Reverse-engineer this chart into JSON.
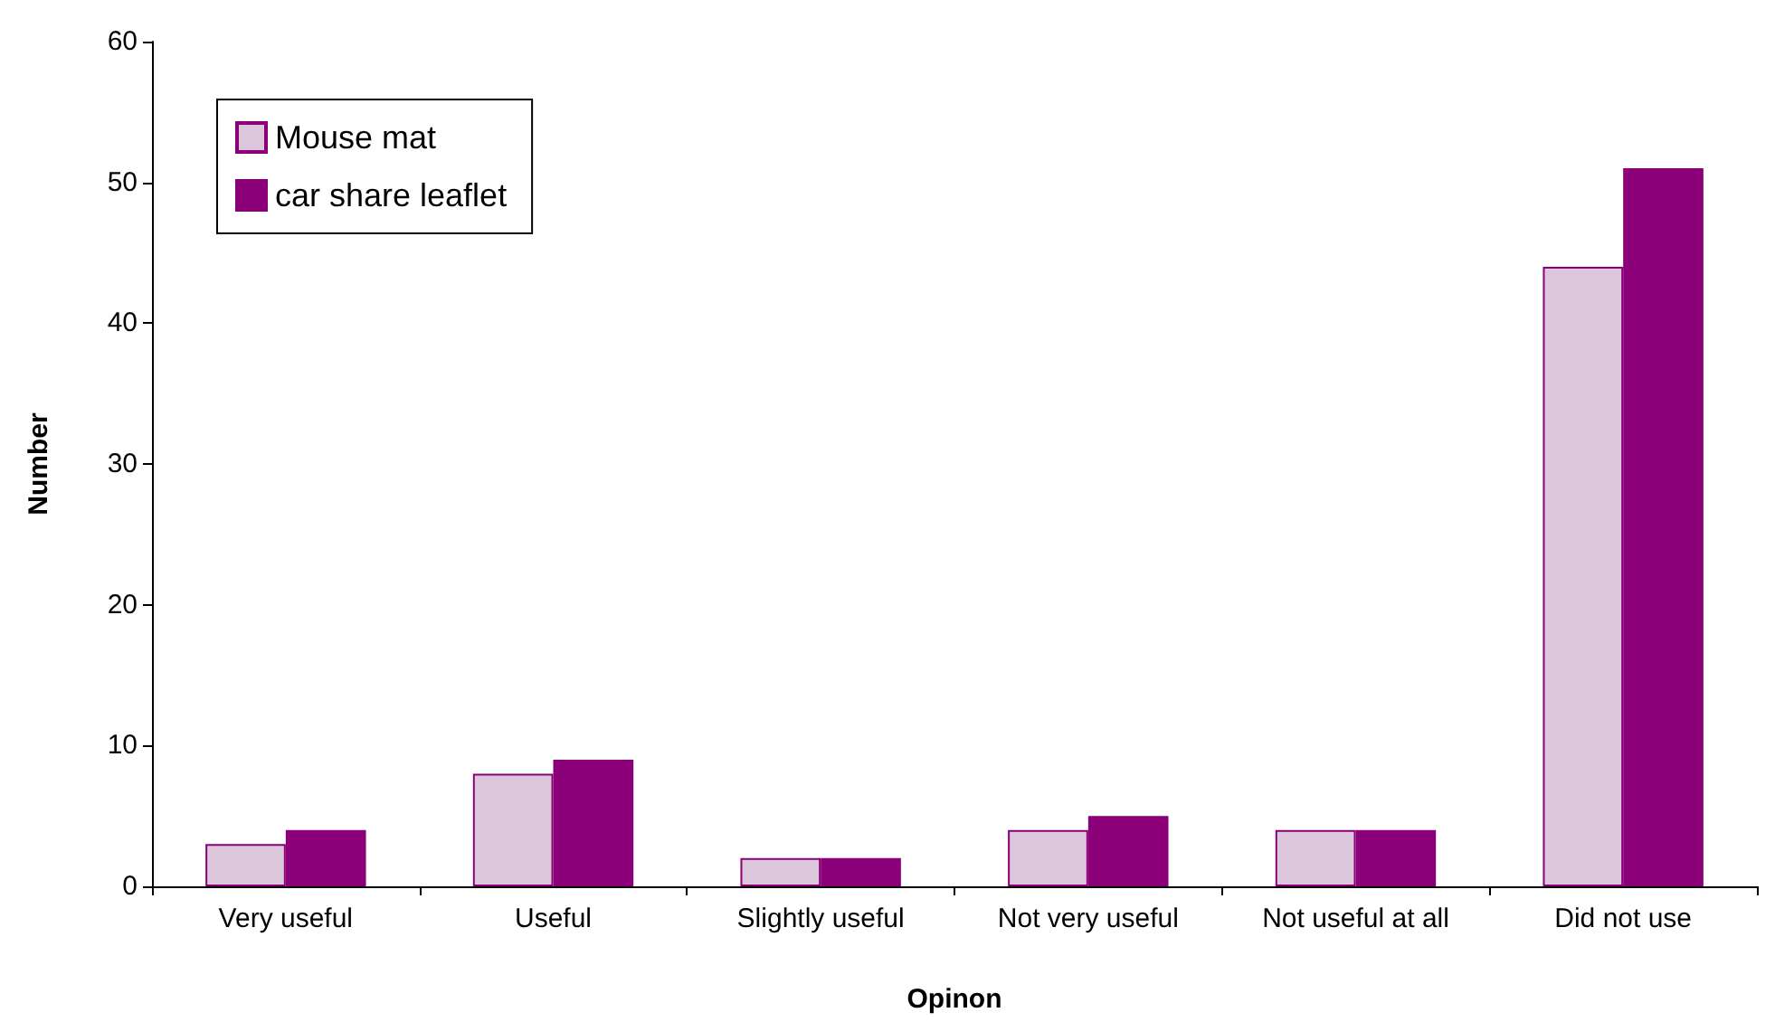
{
  "chart_data": {
    "type": "bar",
    "xlabel": "Opinon",
    "ylabel": "Number",
    "categories": [
      "Very useful",
      "Useful",
      "Slightly useful",
      "Not very useful",
      "Not useful at all",
      "Did not use"
    ],
    "series": [
      {
        "name": "Mouse mat",
        "color": "#dcc6dc",
        "values": [
          3,
          8,
          2,
          4,
          4,
          44
        ]
      },
      {
        "name": "car share leaflet",
        "color": "#8b0079",
        "values": [
          4,
          9,
          2,
          5,
          4,
          51
        ]
      }
    ],
    "ylim": [
      0,
      60
    ],
    "yticks": [
      0,
      10,
      20,
      30,
      40,
      50,
      60
    ],
    "grid": false,
    "legend": "top left"
  }
}
